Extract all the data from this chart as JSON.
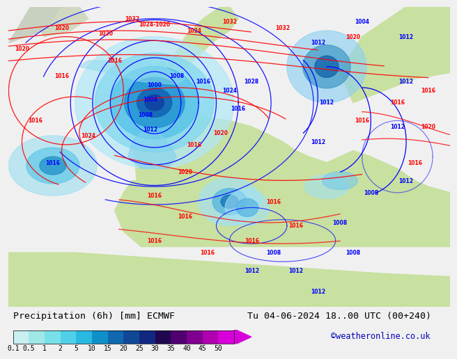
{
  "title_left": "Precipitation (6h) [mm] ECMWF",
  "title_right": "Tu 04-06-2024 18..00 UTC (00+240)",
  "credit": "©weatheronline.co.uk",
  "colorbar_levels": [
    "0.1",
    "0.5",
    "1",
    "2",
    "5",
    "10",
    "15",
    "20",
    "25",
    "30",
    "35",
    "40",
    "45",
    "50"
  ],
  "colorbar_colors": [
    "#c8f0f0",
    "#a0e8e8",
    "#78e0e8",
    "#50d0e8",
    "#28b8e0",
    "#1090c8",
    "#1068b0",
    "#104898",
    "#102880",
    "#200850",
    "#500070",
    "#800090",
    "#b000b0",
    "#d800d8"
  ],
  "bg_color": "#f0f0f0",
  "land_color": "#c8e0a0",
  "ocean_color": "#d8e8f0",
  "text_color": "#000000",
  "credit_color": "#0000bb",
  "title_fontsize": 9.5,
  "credit_fontsize": 8.5,
  "label_fontsize": 5.5
}
